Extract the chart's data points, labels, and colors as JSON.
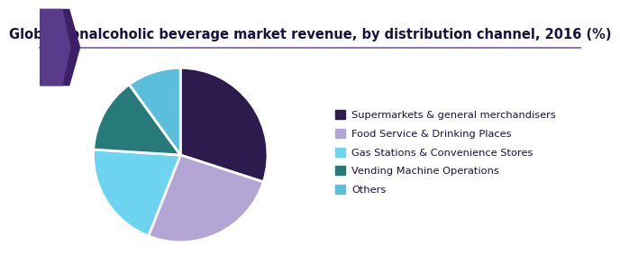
{
  "title": "Global nonalcoholic beverage market revenue, by distribution channel, 2016 (%)",
  "labels": [
    "Supermarkets & general merchandisers",
    "Food Service & Drinking Places",
    "Gas Stations & Convenience Stores",
    "Vending Machine Operations",
    "Others"
  ],
  "values": [
    30,
    26,
    20,
    14,
    10
  ],
  "colors": [
    "#2d1b4e",
    "#b3a5d4",
    "#6dd4f0",
    "#267a7a",
    "#5bbfdc"
  ],
  "startangle": 90,
  "background_color": "#ffffff",
  "title_color": "#1a1040",
  "title_fontsize": 10.5,
  "header_line_color": "#7b5ea7",
  "header_bg_color": "#ffffff"
}
